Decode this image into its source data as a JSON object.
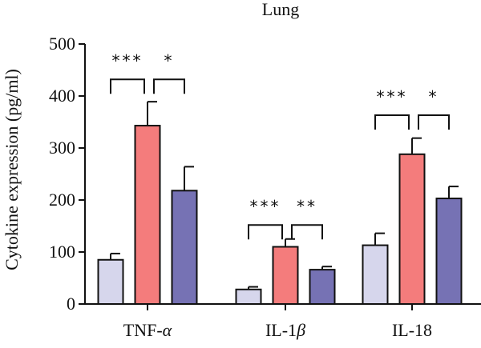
{
  "chart_data": {
    "type": "bar",
    "title": "Lung",
    "ylabel": "Cytokine expression (pg/ml)",
    "xlabel": "",
    "ylim": [
      0,
      500
    ],
    "yticks": [
      0,
      100,
      200,
      300,
      400,
      500
    ],
    "categories": [
      {
        "prefix": "TNF-",
        "greek": "α",
        "suffix": ""
      },
      {
        "prefix": "IL-1",
        "greek": "β",
        "suffix": ""
      },
      {
        "prefix": "IL-18",
        "greek": "",
        "suffix": ""
      }
    ],
    "series": [
      {
        "color": "#d6d6ec",
        "values": [
          85,
          28,
          113
        ],
        "errors": [
          12,
          5,
          23
        ]
      },
      {
        "color": "#f47c7c",
        "values": [
          343,
          110,
          288
        ],
        "errors": [
          46,
          15,
          31
        ]
      },
      {
        "color": "#7672b4",
        "values": [
          218,
          66,
          203
        ],
        "errors": [
          46,
          6,
          23
        ]
      }
    ],
    "significance": [
      {
        "category": 0,
        "from": 0,
        "to": 1,
        "label": "***",
        "y": 432
      },
      {
        "category": 0,
        "from": 1,
        "to": 2,
        "label": "*",
        "y": 432
      },
      {
        "category": 1,
        "from": 0,
        "to": 1,
        "label": "***",
        "y": 152
      },
      {
        "category": 1,
        "from": 1,
        "to": 2,
        "label": "**",
        "y": 152
      },
      {
        "category": 2,
        "from": 0,
        "to": 1,
        "label": "***",
        "y": 363
      },
      {
        "category": 2,
        "from": 1,
        "to": 2,
        "label": "*",
        "y": 363
      }
    ],
    "grid": false,
    "legend": "none"
  }
}
